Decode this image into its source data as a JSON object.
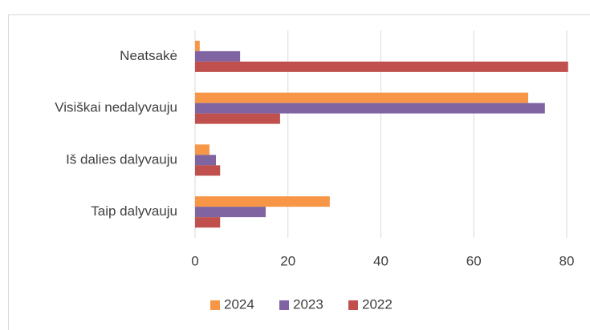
{
  "chart_data": {
    "type": "hbar",
    "categories": [
      "Neatsakė",
      "Visiškai nedalyvauju",
      "Iš dalies dalyvauju",
      "Taip dalyvauju"
    ],
    "series": [
      {
        "name": "2024",
        "color": "#f79646",
        "values": [
          1,
          71.7,
          3.1,
          29
        ]
      },
      {
        "name": "2023",
        "color": "#8064a2",
        "values": [
          9.7,
          75.3,
          4.5,
          15.2
        ]
      },
      {
        "name": "2022",
        "color": "#c0504d",
        "values": [
          80.3,
          18.3,
          5.4,
          5.4
        ]
      }
    ],
    "xlim": [
      0,
      80
    ],
    "xticks": [
      0,
      20,
      40,
      60,
      80
    ],
    "grid": true,
    "legend": "bottom"
  }
}
